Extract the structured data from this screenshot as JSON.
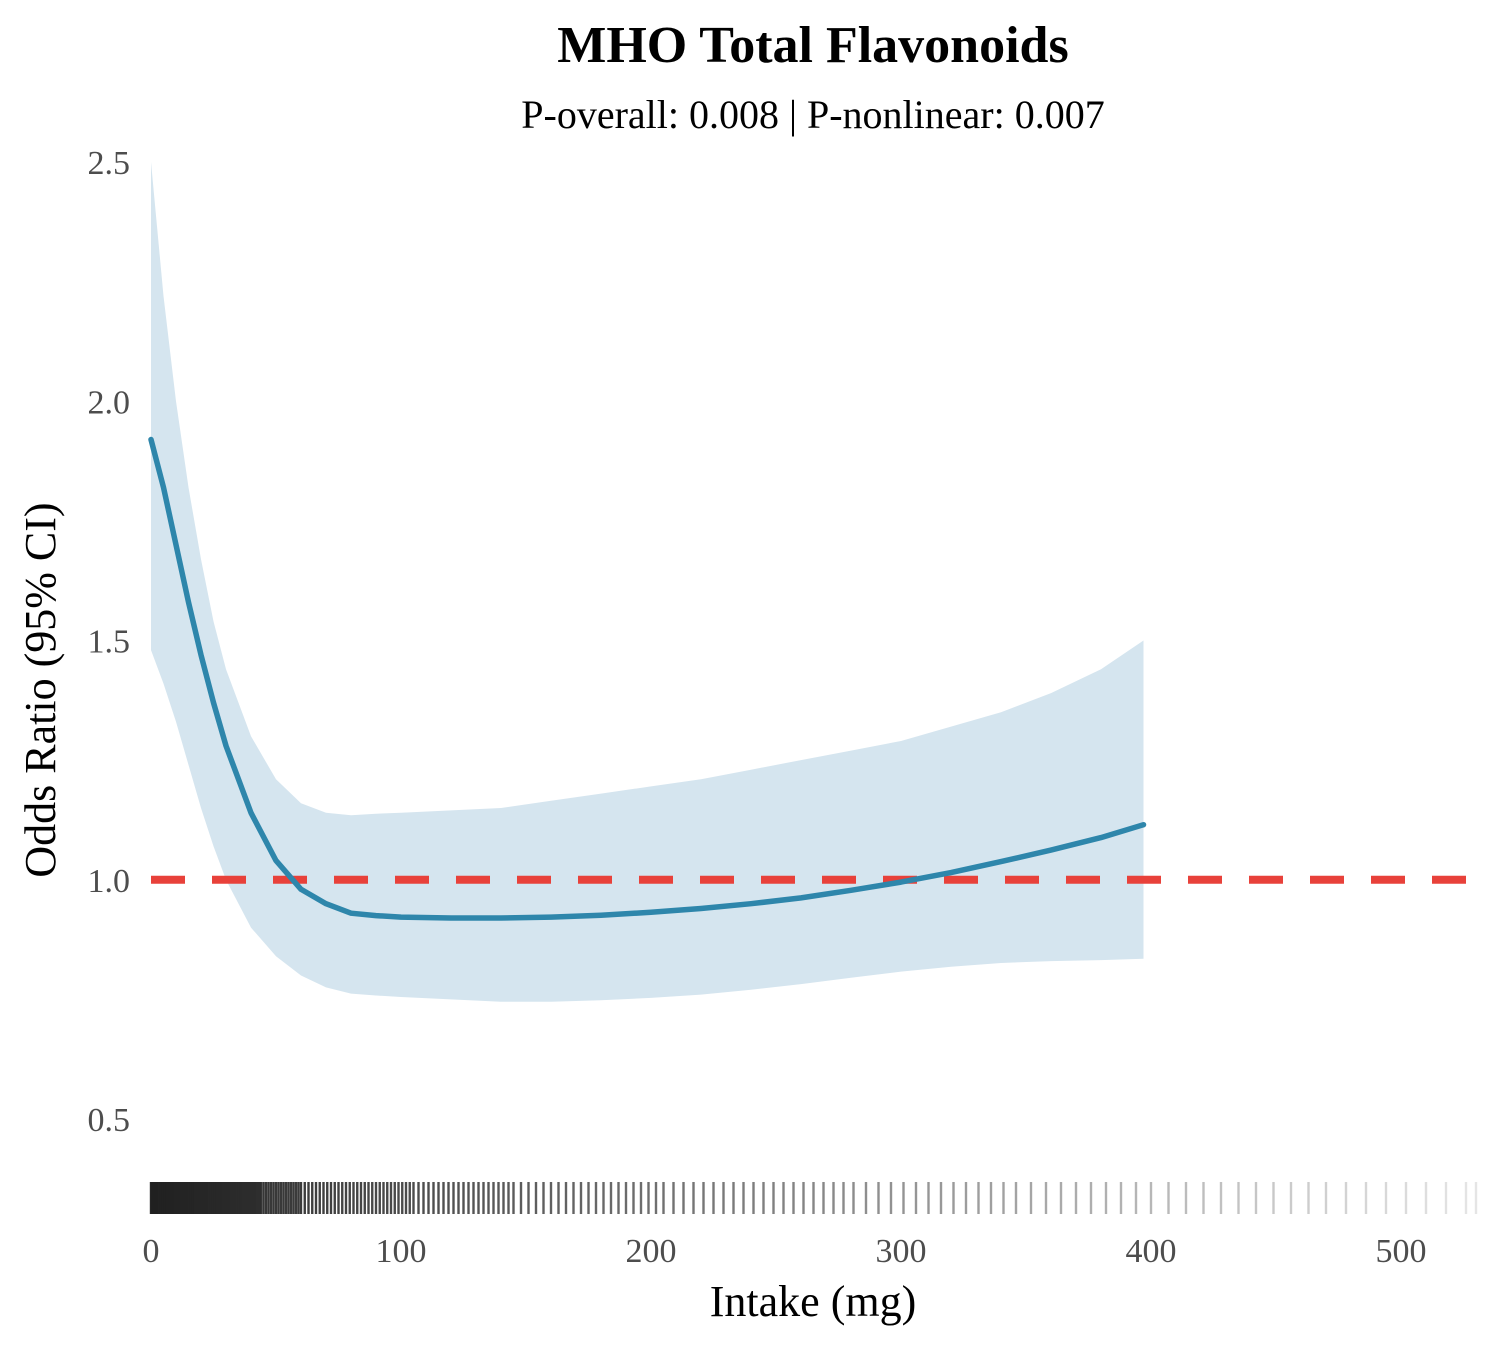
{
  "chart_data": {
    "type": "line",
    "title": "MHO Total Flavonoids",
    "subtitle": "P-overall: 0.008 | P-nonlinear: 0.007",
    "xlabel": "Intake (mg)",
    "ylabel": "Odds Ratio (95% CI)",
    "xlim": [
      0,
      530
    ],
    "ylim": [
      0.5,
      2.5
    ],
    "x_ticks": [
      0,
      100,
      200,
      300,
      400,
      500
    ],
    "x_tick_labels": [
      "0",
      "100",
      "200",
      "300",
      "400",
      "500"
    ],
    "y_ticks": [
      0.5,
      1.0,
      1.5,
      2.0,
      2.5
    ],
    "y_tick_labels": [
      "0.5",
      "1.0",
      "1.5",
      "2.0",
      "2.5"
    ],
    "grid": false,
    "legend": "none",
    "reference_line": {
      "y": 1.0,
      "style": "dashed",
      "color": "#e8413a"
    },
    "series": [
      {
        "x": [
          0,
          5,
          10,
          15,
          20,
          25,
          30,
          40,
          50,
          60,
          70,
          80,
          90,
          100,
          120,
          140,
          160,
          180,
          200,
          220,
          240,
          260,
          280,
          300,
          320,
          340,
          360,
          380,
          397
        ],
        "y": [
          1.92,
          1.82,
          1.7,
          1.58,
          1.47,
          1.37,
          1.28,
          1.14,
          1.04,
          0.98,
          0.95,
          0.93,
          0.925,
          0.922,
          0.92,
          0.92,
          0.922,
          0.926,
          0.932,
          0.94,
          0.95,
          0.962,
          0.978,
          0.995,
          1.015,
          1.038,
          1.062,
          1.088,
          1.115
        ],
        "lower": [
          1.48,
          1.41,
          1.33,
          1.24,
          1.15,
          1.07,
          1.0,
          0.9,
          0.84,
          0.8,
          0.775,
          0.762,
          0.758,
          0.755,
          0.75,
          0.745,
          0.745,
          0.748,
          0.753,
          0.76,
          0.77,
          0.782,
          0.795,
          0.808,
          0.818,
          0.826,
          0.83,
          0.832,
          0.835
        ],
        "upper": [
          2.5,
          2.22,
          2.0,
          1.82,
          1.67,
          1.54,
          1.44,
          1.3,
          1.21,
          1.16,
          1.14,
          1.135,
          1.138,
          1.14,
          1.145,
          1.15,
          1.165,
          1.18,
          1.195,
          1.21,
          1.23,
          1.25,
          1.27,
          1.29,
          1.32,
          1.35,
          1.39,
          1.44,
          1.5
        ]
      }
    ],
    "colors": {
      "line": "#2e86ab",
      "band": "#d5e5ef",
      "ref": "#e8413a",
      "rug": "#000000"
    },
    "rug": [
      0,
      0.8,
      1.6,
      2.4,
      3.2,
      4,
      4.8,
      5.6,
      6.4,
      7.2,
      8,
      8.8,
      9.6,
      10.4,
      11.2,
      12,
      12.8,
      13.6,
      14.4,
      15.2,
      16,
      16.8,
      17.6,
      18.4,
      19.2,
      20,
      20.8,
      21.6,
      22.4,
      23.2,
      24,
      24.8,
      25.6,
      26.4,
      27.2,
      28,
      28.8,
      29.6,
      30.4,
      31.2,
      32,
      32.8,
      33.6,
      34.4,
      35.2,
      36,
      36.8,
      37.6,
      38.4,
      39.2,
      40,
      40.8,
      41.6,
      42.4,
      43.2,
      44,
      45,
      46,
      47,
      48,
      49,
      50,
      51,
      52,
      53,
      54,
      55,
      56,
      57,
      58,
      59,
      60,
      61.5,
      63,
      64.5,
      66,
      67.5,
      69,
      70.5,
      72,
      73.5,
      75,
      76.5,
      78,
      79.5,
      81,
      82.5,
      84,
      85.5,
      87,
      88.5,
      90,
      91.5,
      93,
      94.5,
      96,
      97.5,
      99,
      100.5,
      102,
      103.5,
      105,
      107,
      109,
      111,
      113,
      115,
      117,
      119,
      121,
      123,
      125,
      127,
      129,
      131,
      133,
      135,
      137,
      139,
      141,
      143,
      145,
      148,
      151,
      154,
      157,
      160,
      163,
      166,
      169,
      172,
      175,
      178,
      181,
      184,
      187,
      190,
      193,
      196,
      199,
      202,
      205,
      209,
      213,
      217,
      221,
      225,
      229,
      233,
      237,
      241,
      245,
      249,
      253,
      257,
      261,
      265,
      269,
      273,
      277,
      281,
      286,
      291,
      296,
      301,
      306,
      311,
      316,
      321,
      326,
      331,
      336,
      341,
      346,
      352,
      358,
      364,
      370,
      376,
      382,
      388,
      394,
      400,
      407,
      414,
      421,
      428,
      435,
      442,
      449,
      456,
      463,
      470,
      478,
      486,
      494,
      502,
      510,
      518,
      526,
      530
    ]
  }
}
